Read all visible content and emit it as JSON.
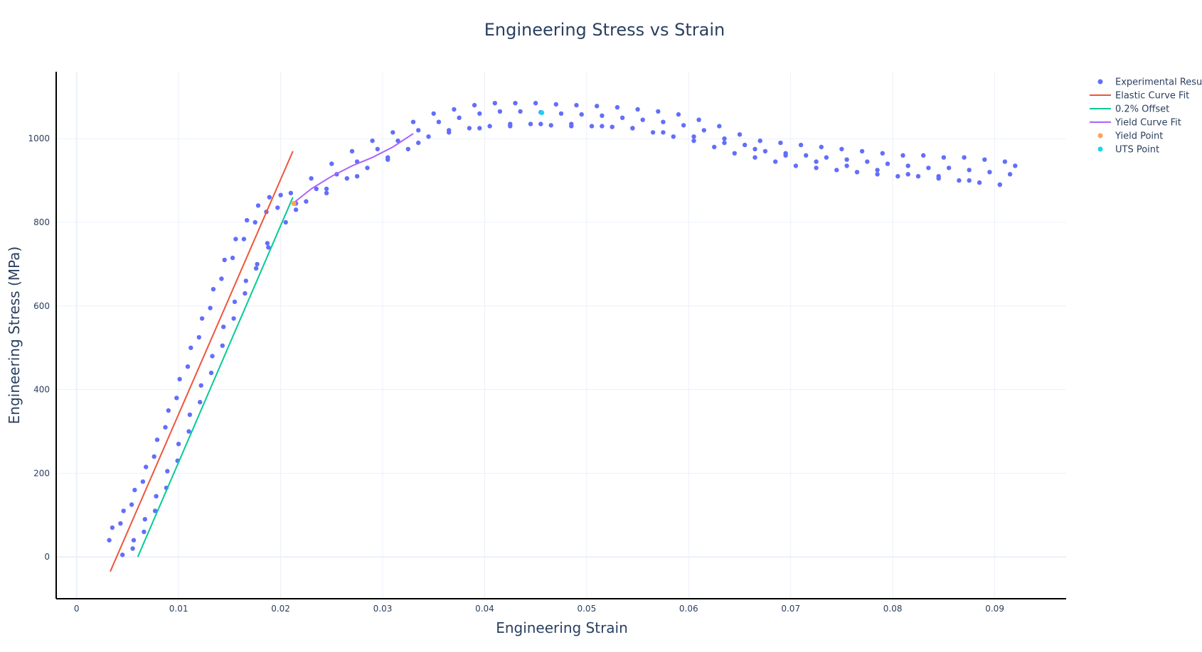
{
  "chart_data": {
    "type": "scatter",
    "title": "Engineering Stress vs Strain",
    "xlabel": "Engineering Strain",
    "ylabel": "Engineering Stress (MPa)",
    "xlim": [
      -0.002,
      0.097
    ],
    "ylim": [
      -100,
      1160
    ],
    "x_ticks": [
      0,
      0.01,
      0.02,
      0.03,
      0.04,
      0.05,
      0.06,
      0.07,
      0.08,
      0.09
    ],
    "x_tick_labels": [
      "0",
      "0.01",
      "0.02",
      "0.03",
      "0.04",
      "0.05",
      "0.06",
      "0.07",
      "0.08",
      "0.09"
    ],
    "y_ticks": [
      0,
      200,
      400,
      600,
      800,
      1000
    ],
    "y_tick_labels": [
      "0",
      "200",
      "400",
      "600",
      "800",
      "1000"
    ],
    "grid": true,
    "legend_position": "top-right",
    "series": [
      {
        "name": "Experimental Results",
        "mode": "markers",
        "color": "#636efa",
        "bands": [
          {
            "x": [
              0.0035,
              0.0046,
              0.0057,
              0.0068,
              0.0079,
              0.009,
              0.0101,
              0.0112,
              0.0123,
              0.0134,
              0.0145,
              0.0156,
              0.0167,
              0.0178,
              0.0189,
              0.02,
              0.021,
              0.023,
              0.025,
              0.027,
              0.029,
              0.031,
              0.033,
              0.035,
              0.037,
              0.039,
              0.041,
              0.043,
              0.045,
              0.047,
              0.049,
              0.051,
              0.053,
              0.055,
              0.057,
              0.059,
              0.061,
              0.063,
              0.065,
              0.067,
              0.069,
              0.071,
              0.073,
              0.075,
              0.077,
              0.079,
              0.081,
              0.083,
              0.085,
              0.087,
              0.089,
              0.091,
              0.092
            ],
            "y": [
              70,
              110,
              160,
              215,
              280,
              350,
              425,
              500,
              570,
              640,
              710,
              760,
              805,
              840,
              860,
              865,
              870,
              905,
              940,
              970,
              995,
              1015,
              1040,
              1060,
              1070,
              1080,
              1085,
              1085,
              1085,
              1082,
              1080,
              1078,
              1075,
              1070,
              1065,
              1058,
              1045,
              1030,
              1010,
              995,
              990,
              985,
              980,
              975,
              970,
              965,
              960,
              960,
              955,
              955,
              950,
              945,
              935
            ]
          },
          {
            "x": [
              0.0032,
              0.0043,
              0.0054,
              0.0065,
              0.0076,
              0.0087,
              0.0098,
              0.0109,
              0.012,
              0.0131,
              0.0142,
              0.0153,
              0.0164,
              0.0175,
              0.0186,
              0.0197,
              0.0215,
              0.0235,
              0.0255,
              0.0275,
              0.0295,
              0.0315,
              0.0335,
              0.0355,
              0.0375,
              0.0395,
              0.0415,
              0.0435,
              0.0455,
              0.0475,
              0.0495,
              0.0515,
              0.0535,
              0.0555,
              0.0575,
              0.0595,
              0.0615,
              0.0635,
              0.0655,
              0.0675,
              0.0695,
              0.0715,
              0.0735,
              0.0755,
              0.0775,
              0.0795,
              0.0815,
              0.0835,
              0.0855,
              0.0875,
              0.0895,
              0.0915
            ],
            "y": [
              40,
              80,
              125,
              180,
              240,
              310,
              380,
              455,
              525,
              595,
              665,
              715,
              760,
              800,
              825,
              835,
              845,
              880,
              915,
              945,
              975,
              995,
              1020,
              1040,
              1050,
              1060,
              1065,
              1065,
              1063,
              1060,
              1058,
              1055,
              1050,
              1045,
              1040,
              1032,
              1020,
              1000,
              985,
              970,
              965,
              960,
              955,
              950,
              945,
              940,
              935,
              930,
              930,
              925,
              920,
              915
            ]
          },
          {
            "x": [
              0.0045,
              0.0056,
              0.0067,
              0.0078,
              0.0089,
              0.01,
              0.0111,
              0.0122,
              0.0133,
              0.0144,
              0.0155,
              0.0166,
              0.0177,
              0.0188,
              0.0205,
              0.0225,
              0.0245,
              0.0265,
              0.0285,
              0.0305,
              0.0325,
              0.0345,
              0.0365,
              0.0385,
              0.0405,
              0.0425,
              0.0445,
              0.0465,
              0.0485,
              0.0505,
              0.0525,
              0.0545,
              0.0565,
              0.0585,
              0.0605,
              0.0625,
              0.0645,
              0.0665,
              0.0685,
              0.0705,
              0.0725,
              0.0745,
              0.0765,
              0.0785,
              0.0805,
              0.0825,
              0.0845,
              0.0865,
              0.0885,
              0.0905
            ],
            "y": [
              5,
              40,
              90,
              145,
              205,
              270,
              340,
              410,
              480,
              550,
              610,
              660,
              700,
              740,
              800,
              850,
              880,
              905,
              930,
              955,
              975,
              1005,
              1020,
              1025,
              1030,
              1035,
              1035,
              1032,
              1030,
              1030,
              1028,
              1025,
              1015,
              1005,
              995,
              980,
              965,
              955,
              945,
              935,
              930,
              925,
              920,
              915,
              910,
              910,
              905,
              900,
              895,
              890
            ]
          },
          {
            "x": [
              0.0055,
              0.0066,
              0.0077,
              0.0088,
              0.0099,
              0.011,
              0.0121,
              0.0132,
              0.0143,
              0.0154,
              0.0165,
              0.0176,
              0.0187,
              0.0215,
              0.0245,
              0.0275,
              0.0305,
              0.0335,
              0.0365,
              0.0395,
              0.0425,
              0.0455,
              0.0485,
              0.0515,
              0.0545,
              0.0575,
              0.0605,
              0.0635,
              0.0665,
              0.0695,
              0.0725,
              0.0755,
              0.0785,
              0.0815,
              0.0845,
              0.0875,
              0.0905
            ],
            "y": [
              20,
              60,
              110,
              165,
              230,
              300,
              370,
              440,
              505,
              570,
              630,
              690,
              750,
              830,
              870,
              910,
              950,
              990,
              1015,
              1025,
              1030,
              1035,
              1035,
              1030,
              1025,
              1015,
              1005,
              990,
              975,
              960,
              945,
              935,
              925,
              915,
              910,
              900,
              890
            ]
          }
        ]
      },
      {
        "name": "Elastic Curve Fit",
        "mode": "lines",
        "color": "#ef553b",
        "x": [
          0.0033,
          0.0212
        ],
        "y": [
          -35,
          970
        ]
      },
      {
        "name": "0.2% Offset",
        "mode": "lines",
        "color": "#00cc96",
        "x": [
          0.006,
          0.0212
        ],
        "y": [
          0,
          860
        ]
      },
      {
        "name": "Yield Curve Fit",
        "mode": "lines",
        "color": "#ab63fa",
        "x": [
          0.0212,
          0.023,
          0.025,
          0.027,
          0.029,
          0.031,
          0.033
        ],
        "y": [
          845,
          880,
          910,
          935,
          955,
          980,
          1012
        ]
      },
      {
        "name": "Yield Point",
        "mode": "markers",
        "color": "#ffa15a",
        "x": [
          0.0213
        ],
        "y": [
          845
        ]
      },
      {
        "name": "UTS Point",
        "mode": "markers",
        "color": "#19d3f3",
        "x": [
          0.0456
        ],
        "y": [
          1062
        ]
      }
    ]
  }
}
